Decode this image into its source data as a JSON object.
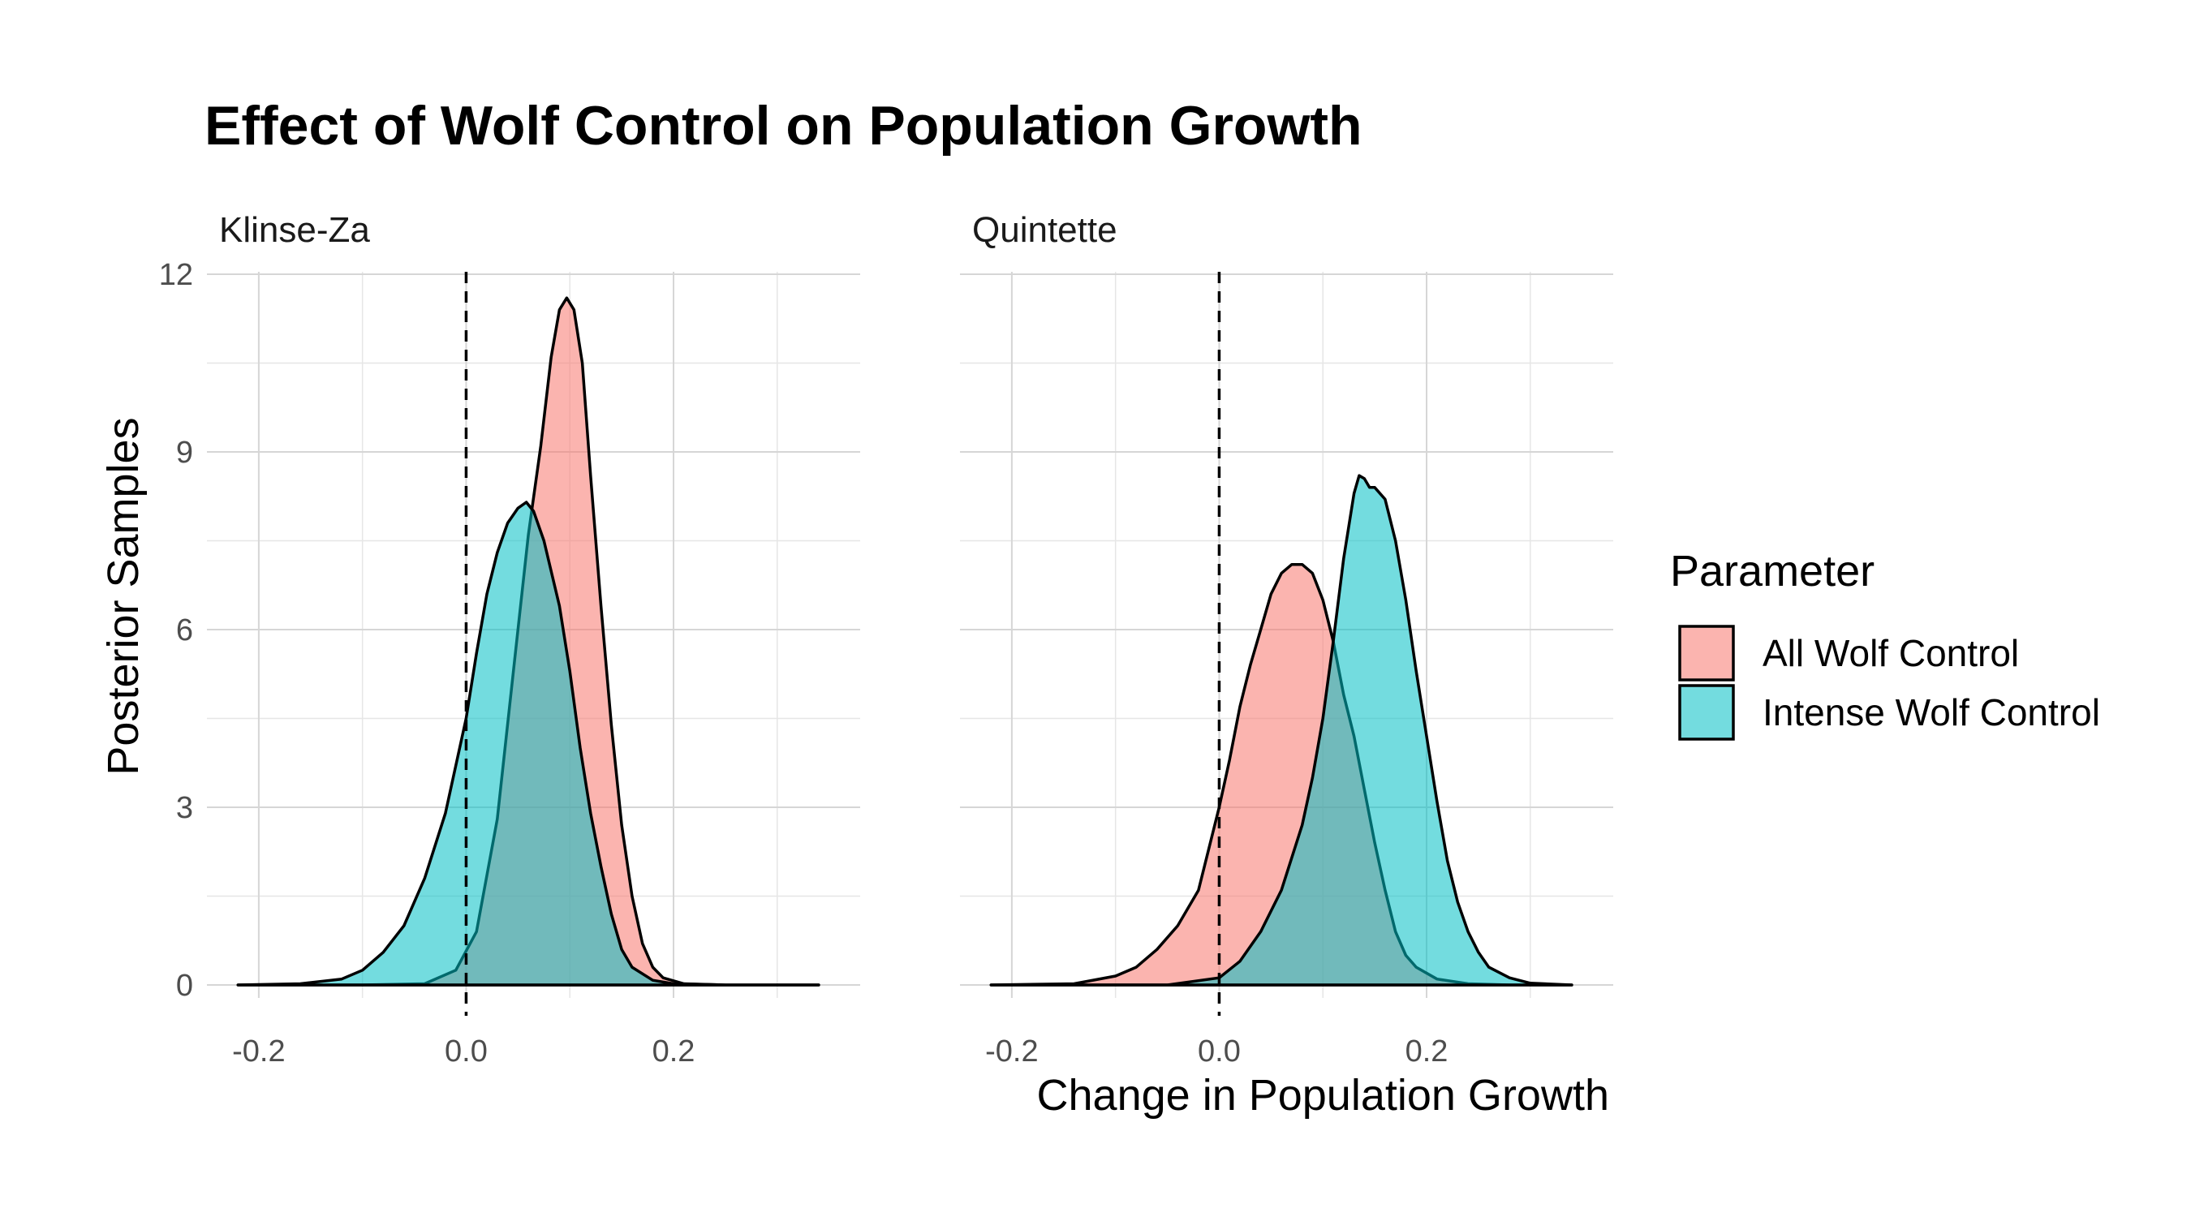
{
  "chart_data": {
    "type": "area",
    "title": "Effect of Wolf Control on Population Growth",
    "xlabel": "Change in Population Growth",
    "ylabel": "Posterior Samples",
    "xlim": [
      -0.25,
      0.38
    ],
    "ylim": [
      0,
      12
    ],
    "x_ticks": [
      -0.2,
      0.0,
      0.2
    ],
    "x_tick_labels": [
      "-0.2",
      "0.0",
      "0.2"
    ],
    "y_ticks": [
      0,
      3,
      6,
      9,
      12
    ],
    "y_tick_labels": [
      "0",
      "3",
      "6",
      "9",
      "12"
    ],
    "grid": true,
    "reference_line_x": 0,
    "legend": {
      "title": "Parameter",
      "position": "right",
      "entries": [
        {
          "label": "All Wolf Control",
          "color": "#F8766D"
        },
        {
          "label": "Intense Wolf Control",
          "color": "#00BFC4"
        }
      ]
    },
    "panels": [
      {
        "name": "Klinse-Za",
        "series": [
          {
            "name": "All Wolf Control",
            "color": "#F8766D",
            "points": [
              [
                -0.22,
                0
              ],
              [
                -0.1,
                0
              ],
              [
                -0.04,
                0.02
              ],
              [
                -0.01,
                0.25
              ],
              [
                0.01,
                0.9
              ],
              [
                0.03,
                2.8
              ],
              [
                0.045,
                5.2
              ],
              [
                0.06,
                7.6
              ],
              [
                0.072,
                9.1
              ],
              [
                0.082,
                10.6
              ],
              [
                0.09,
                11.4
              ],
              [
                0.097,
                11.6
              ],
              [
                0.104,
                11.4
              ],
              [
                0.112,
                10.5
              ],
              [
                0.12,
                8.6
              ],
              [
                0.13,
                6.4
              ],
              [
                0.14,
                4.4
              ],
              [
                0.15,
                2.7
              ],
              [
                0.16,
                1.5
              ],
              [
                0.17,
                0.7
              ],
              [
                0.18,
                0.3
              ],
              [
                0.19,
                0.12
              ],
              [
                0.21,
                0.02
              ],
              [
                0.25,
                0
              ],
              [
                0.34,
                0
              ]
            ]
          },
          {
            "name": "Intense Wolf Control",
            "color": "#00BFC4",
            "points": [
              [
                -0.22,
                0
              ],
              [
                -0.16,
                0.02
              ],
              [
                -0.12,
                0.1
              ],
              [
                -0.1,
                0.25
              ],
              [
                -0.08,
                0.55
              ],
              [
                -0.06,
                1.0
              ],
              [
                -0.04,
                1.8
              ],
              [
                -0.02,
                2.9
              ],
              [
                0.0,
                4.5
              ],
              [
                0.01,
                5.6
              ],
              [
                0.02,
                6.6
              ],
              [
                0.03,
                7.3
              ],
              [
                0.04,
                7.8
              ],
              [
                0.05,
                8.05
              ],
              [
                0.058,
                8.15
              ],
              [
                0.065,
                8.0
              ],
              [
                0.075,
                7.5
              ],
              [
                0.09,
                6.4
              ],
              [
                0.1,
                5.3
              ],
              [
                0.11,
                4.0
              ],
              [
                0.12,
                2.9
              ],
              [
                0.13,
                2.0
              ],
              [
                0.14,
                1.2
              ],
              [
                0.15,
                0.6
              ],
              [
                0.16,
                0.3
              ],
              [
                0.18,
                0.08
              ],
              [
                0.2,
                0.02
              ],
              [
                0.25,
                0
              ],
              [
                0.34,
                0
              ]
            ]
          }
        ]
      },
      {
        "name": "Quintette",
        "series": [
          {
            "name": "All Wolf Control",
            "color": "#F8766D",
            "points": [
              [
                -0.22,
                0
              ],
              [
                -0.14,
                0.02
              ],
              [
                -0.1,
                0.15
              ],
              [
                -0.08,
                0.3
              ],
              [
                -0.06,
                0.6
              ],
              [
                -0.04,
                1.0
              ],
              [
                -0.02,
                1.6
              ],
              [
                0.0,
                3.0
              ],
              [
                0.01,
                3.8
              ],
              [
                0.02,
                4.7
              ],
              [
                0.03,
                5.4
              ],
              [
                0.04,
                6.0
              ],
              [
                0.05,
                6.6
              ],
              [
                0.06,
                6.95
              ],
              [
                0.07,
                7.1
              ],
              [
                0.08,
                7.1
              ],
              [
                0.09,
                6.95
              ],
              [
                0.1,
                6.5
              ],
              [
                0.11,
                5.8
              ],
              [
                0.12,
                4.9
              ],
              [
                0.13,
                4.2
              ],
              [
                0.14,
                3.3
              ],
              [
                0.15,
                2.4
              ],
              [
                0.16,
                1.6
              ],
              [
                0.17,
                0.9
              ],
              [
                0.18,
                0.5
              ],
              [
                0.19,
                0.3
              ],
              [
                0.21,
                0.1
              ],
              [
                0.24,
                0.02
              ],
              [
                0.28,
                0
              ],
              [
                0.34,
                0
              ]
            ]
          },
          {
            "name": "Intense Wolf Control",
            "color": "#00BFC4",
            "points": [
              [
                -0.22,
                0
              ],
              [
                -0.05,
                0
              ],
              [
                0.0,
                0.12
              ],
              [
                0.02,
                0.4
              ],
              [
                0.04,
                0.9
              ],
              [
                0.06,
                1.6
              ],
              [
                0.08,
                2.7
              ],
              [
                0.09,
                3.5
              ],
              [
                0.1,
                4.5
              ],
              [
                0.11,
                5.8
              ],
              [
                0.12,
                7.2
              ],
              [
                0.13,
                8.3
              ],
              [
                0.135,
                8.6
              ],
              [
                0.14,
                8.55
              ],
              [
                0.145,
                8.4
              ],
              [
                0.15,
                8.4
              ],
              [
                0.16,
                8.2
              ],
              [
                0.17,
                7.5
              ],
              [
                0.18,
                6.5
              ],
              [
                0.19,
                5.3
              ],
              [
                0.2,
                4.2
              ],
              [
                0.21,
                3.1
              ],
              [
                0.22,
                2.1
              ],
              [
                0.23,
                1.4
              ],
              [
                0.24,
                0.9
              ],
              [
                0.25,
                0.55
              ],
              [
                0.26,
                0.3
              ],
              [
                0.28,
                0.12
              ],
              [
                0.3,
                0.03
              ],
              [
                0.34,
                0
              ]
            ]
          }
        ]
      }
    ]
  }
}
